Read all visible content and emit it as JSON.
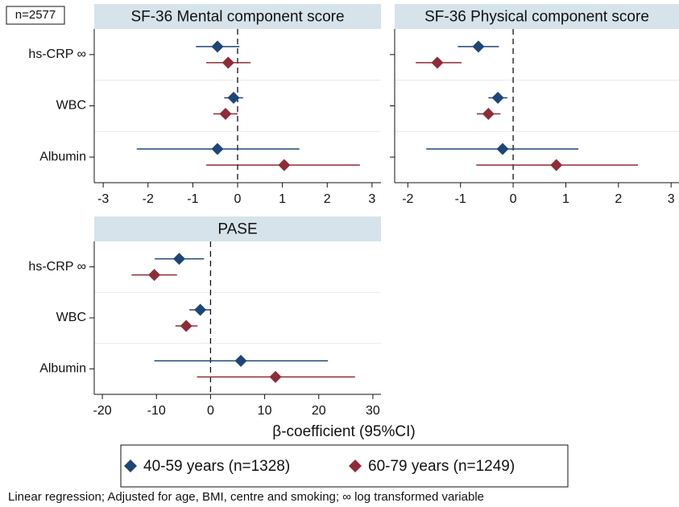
{
  "sample_label": "n=2577",
  "xlabel": "β-coefficient (95%CI)",
  "footnote": "Linear regression; Adjusted for age, BMI, centre and smoking; ∞ log transformed variable",
  "chart_data": [
    {
      "type": "forest",
      "title": "SF-36 Mental component score",
      "categories": [
        "hs-CRP ∞",
        "WBC",
        "Albumin"
      ],
      "xlim": [
        -3.2,
        3.2
      ],
      "xticks": [
        -3,
        -2,
        -1,
        0,
        1,
        2,
        3
      ],
      "refline": 0,
      "series": [
        {
          "name": "40-59 years (n=1328)",
          "color": "#1d4677",
          "values": [
            -0.45,
            -0.09,
            -0.45
          ],
          "lower": [
            -0.93,
            -0.3,
            -2.25
          ],
          "upper": [
            0.04,
            0.12,
            1.38
          ]
        },
        {
          "name": "60-79 years (n=1249)",
          "color": "#8e2c38",
          "values": [
            -0.21,
            -0.27,
            1.04
          ],
          "lower": [
            -0.7,
            -0.54,
            -0.7
          ],
          "upper": [
            0.29,
            0.0,
            2.73
          ]
        }
      ]
    },
    {
      "type": "forest",
      "title": "SF-36 Physical component score",
      "xlim": [
        -2.25,
        3.15
      ],
      "xticks": [
        -2,
        -1,
        0,
        1,
        2,
        3
      ],
      "refline": 0,
      "series": [
        {
          "color": "#1d4677",
          "values": [
            -0.66,
            -0.29,
            -0.2
          ],
          "lower": [
            -1.05,
            -0.47,
            -1.65
          ],
          "upper": [
            -0.27,
            -0.11,
            1.24
          ]
        },
        {
          "color": "#8e2c38",
          "values": [
            -1.44,
            -0.47,
            0.82
          ],
          "lower": [
            -1.85,
            -0.69,
            -0.7
          ],
          "upper": [
            -0.98,
            -0.24,
            2.37
          ]
        }
      ]
    },
    {
      "type": "forest",
      "title": "PASE",
      "categories": [
        "hs-CRP ∞",
        "WBC",
        "Albumin"
      ],
      "xlim": [
        -21.5,
        31.5
      ],
      "xticks": [
        -20,
        -10,
        0,
        10,
        20,
        30
      ],
      "refline": 0,
      "series": [
        {
          "color": "#1d4677",
          "values": [
            -5.8,
            -1.9,
            5.6
          ],
          "lower": [
            -10.3,
            -3.9,
            -10.4
          ],
          "upper": [
            -1.2,
            0,
            21.7
          ]
        },
        {
          "color": "#8e2c38",
          "values": [
            -10.4,
            -4.5,
            12.0
          ],
          "lower": [
            -14.6,
            -6.5,
            -2.5
          ],
          "upper": [
            -6.2,
            -2.4,
            26.7
          ]
        }
      ]
    }
  ]
}
